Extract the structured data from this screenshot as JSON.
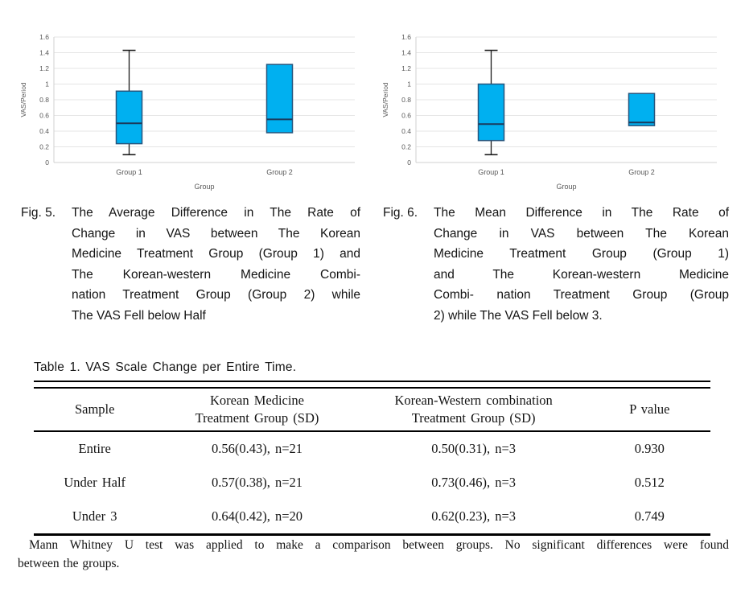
{
  "chart_data": [
    {
      "type": "boxplot",
      "title": "",
      "ylabel": "VAS/Period",
      "xlabel": "Group",
      "ylim": [
        0,
        1.6
      ],
      "yticks": [
        0,
        0.2,
        0.4,
        0.6,
        0.8,
        1,
        1.2,
        1.4,
        1.6
      ],
      "grid": "horizontal",
      "legend": "none",
      "categories": [
        "Group 1",
        "Group 2"
      ],
      "boxes": [
        {
          "category": "Group 1",
          "whisker_low": 0.1,
          "q1": 0.24,
          "median": 0.5,
          "q3": 0.91,
          "whisker_high": 1.43
        },
        {
          "category": "Group 2",
          "whisker_low": null,
          "q1": 0.38,
          "median": 0.55,
          "q3": 1.25,
          "whisker_high": null
        }
      ],
      "colors": {
        "box_fill": "#00B0F0",
        "box_border": "#26567E",
        "median": "#1B3A5C",
        "whisker": "#1A1A1A",
        "gridline": "#E5E5E5",
        "axis": "#D2D2D2",
        "label": "#595959"
      }
    },
    {
      "type": "boxplot",
      "title": "",
      "ylabel": "VAS/Period",
      "xlabel": "Group",
      "ylim": [
        0,
        1.6
      ],
      "yticks": [
        0,
        0.2,
        0.4,
        0.6,
        0.8,
        1,
        1.2,
        1.4,
        1.6
      ],
      "grid": "horizontal",
      "legend": "none",
      "categories": [
        "Group 1",
        "Group 2"
      ],
      "boxes": [
        {
          "category": "Group 1",
          "whisker_low": 0.1,
          "q1": 0.28,
          "median": 0.49,
          "q3": 1.0,
          "whisker_high": 1.43
        },
        {
          "category": "Group 2",
          "whisker_low": null,
          "q1": 0.47,
          "median": 0.51,
          "q3": 0.88,
          "whisker_high": null
        }
      ],
      "colors": {
        "box_fill": "#00B0F0",
        "box_border": "#26567E",
        "median": "#1B3A5C",
        "whisker": "#1A1A1A",
        "gridline": "#E5E5E5",
        "axis": "#D2D2D2",
        "label": "#595959"
      }
    }
  ],
  "captions": {
    "fig5": {
      "label": "Fig. 5.",
      "lines": [
        "The Average Difference in The Rate of",
        "Change in VAS between The Korean",
        "Medicine Treatment Group (Group 1) and",
        "The Korean-western Medicine Combi-",
        "nation Treatment Group (Group 2) while",
        "The VAS Fell below Half"
      ]
    },
    "fig6": {
      "label": "Fig. 6.",
      "lines": [
        "The Mean Difference in The Rate of",
        "Change in VAS between The Korean",
        "Medicine Treatment Group (Group 1)",
        "and The Korean-western Medicine",
        "Combi- nation Treatment Group (Group",
        "2) while The VAS Fell below 3."
      ]
    }
  },
  "table": {
    "title": "Table 1. VAS Scale Change per Entire Time.",
    "headers": [
      {
        "line1": "Sample",
        "line2": ""
      },
      {
        "line1": "Korean Medicine",
        "line2": "Treatment Group (SD)"
      },
      {
        "line1": "Korean-Western combination",
        "line2": "Treatment Group (SD)"
      },
      {
        "line1": "P value",
        "line2": ""
      }
    ],
    "rows": [
      {
        "sample": "Entire",
        "korean": "0.56(0.43), n=21",
        "combination": "0.50(0.31), n=3",
        "p": "0.930"
      },
      {
        "sample": "Under Half",
        "korean": "0.57(0.38), n=21",
        "combination": "0.73(0.46), n=3",
        "p": "0.512"
      },
      {
        "sample": "Under 3",
        "korean": "0.64(0.42), n=20",
        "combination": "0.62(0.23), n=3",
        "p": "0.749"
      }
    ],
    "footnote_lines": [
      "Mann Whitney U test was applied to make a comparison between groups. No significant differences were found",
      "between the groups."
    ]
  }
}
